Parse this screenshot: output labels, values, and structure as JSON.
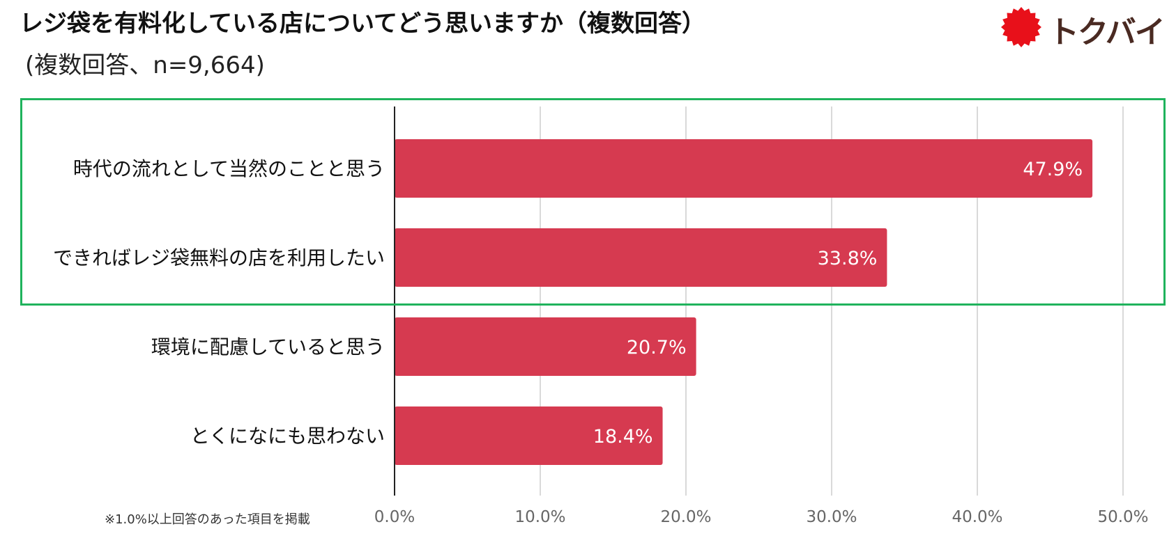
{
  "header": {
    "title": "レジ袋を有料化している店についてどう思いますか（複数回答）",
    "subtitle": "(複数回答、n=9,664)"
  },
  "logo": {
    "text": "トクバイ",
    "mark_color": "#e8101a",
    "text_color": "#4a2a22"
  },
  "footnote": "※1.0%以上回答のあった項目を掲載",
  "colors": {
    "bar": "#d63a50",
    "highlight": "#1fb35c",
    "grid": "#d9d9d9",
    "axis": "#222222"
  },
  "chart_data": {
    "type": "bar",
    "orientation": "horizontal",
    "categories": [
      "時代の流れとして当然のことと思う",
      "できればレジ袋無料の店を利用したい",
      "環境に配慮していると思う",
      "とくになにも思わない"
    ],
    "values": [
      47.9,
      33.8,
      20.7,
      18.4
    ],
    "data_labels": [
      "47.9%",
      "33.8%",
      "20.7%",
      "18.4%"
    ],
    "xlim": [
      0,
      50
    ],
    "ticks": [
      0,
      10,
      20,
      30,
      40,
      50
    ],
    "tick_labels": [
      "0.0%",
      "10.0%",
      "20.0%",
      "30.0%",
      "40.0%",
      "50.0%"
    ],
    "grid": true,
    "highlighted_categories": [
      0,
      1
    ]
  }
}
